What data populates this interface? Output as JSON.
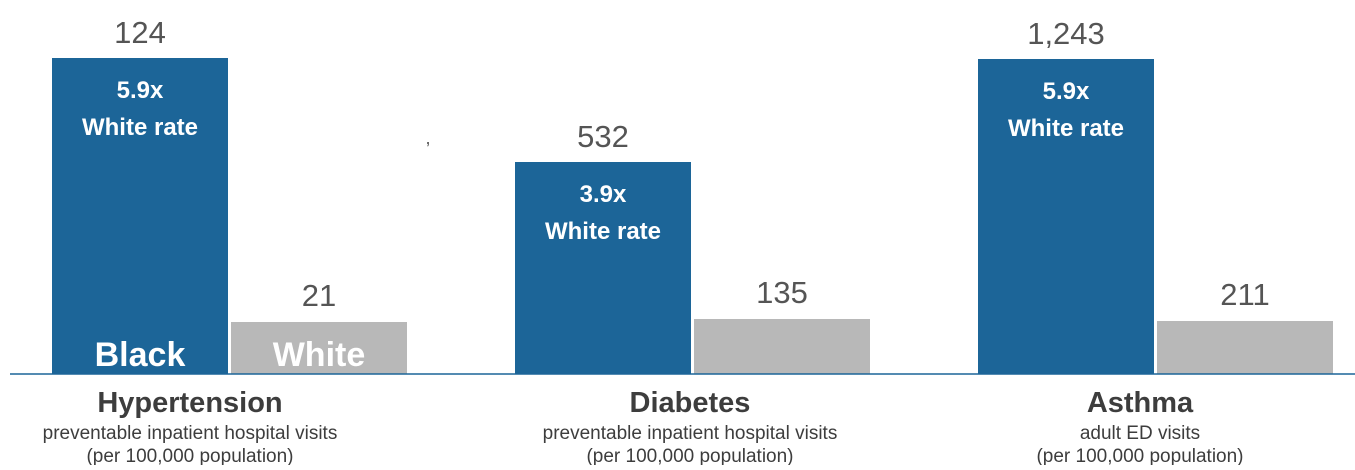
{
  "chart_data": {
    "type": "bar",
    "categories": [
      "Hypertension",
      "Diabetes",
      "Asthma"
    ],
    "category_subtitles": [
      [
        "preventable inpatient hospital visits",
        "(per 100,000 population)"
      ],
      [
        "preventable inpatient hospital visits",
        "(per 100,000 population)"
      ],
      [
        "adult ED visits",
        "(per 100,000 population)"
      ]
    ],
    "series": [
      {
        "name": "Black",
        "values": [
          124,
          532,
          1243
        ],
        "value_labels": [
          "124",
          "532",
          "1,243"
        ],
        "color": "#1c6598"
      },
      {
        "name": "White",
        "values": [
          21,
          135,
          211
        ],
        "value_labels": [
          "21",
          "135",
          "211"
        ],
        "color": "#b8b8b8"
      }
    ],
    "ratio_labels": [
      [
        "5.9x",
        "White rate"
      ],
      [
        "3.9x",
        "White rate"
      ],
      [
        "5.9x",
        "White rate"
      ]
    ],
    "stray_mark": ",",
    "axis_color": "#1c6598",
    "title": "",
    "xlabel": "",
    "ylabel": "",
    "grid": false,
    "legend": "inside first pair of bars"
  }
}
